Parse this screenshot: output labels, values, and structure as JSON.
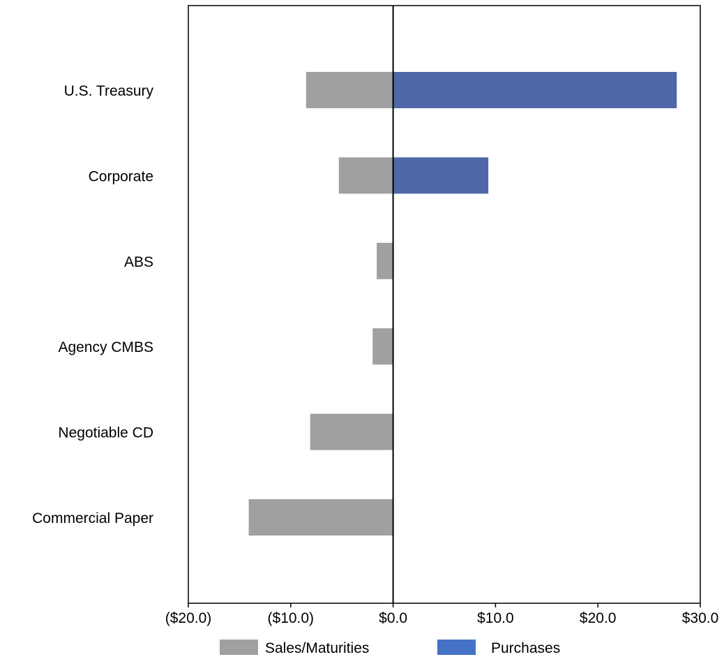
{
  "chart_data": {
    "type": "bar",
    "orientation": "horizontal",
    "stacked": "diverging",
    "categories": [
      "U.S. Treasury",
      "Corporate",
      "ABS",
      "Agency CMBS",
      "Negotiable CD",
      "Commercial Paper"
    ],
    "series": [
      {
        "name": "Sales/Maturities",
        "color": "#a0a0a0",
        "values": [
          -8.5,
          -5.3,
          -1.6,
          -2.0,
          -8.1,
          -14.1
        ]
      },
      {
        "name": "Purchases",
        "color": "#4f67a8",
        "values": [
          27.7,
          9.3,
          0,
          0,
          0,
          0
        ]
      }
    ],
    "xlim": [
      -20,
      30
    ],
    "xticks": [
      -20,
      -10,
      0,
      10,
      20,
      30
    ],
    "xtick_labels": [
      "($20.0)",
      "($10.0)",
      "$0.0",
      "$10.0",
      "$20.0",
      "$30.0"
    ],
    "title": "",
    "xlabel": "",
    "ylabel": "",
    "grid": false,
    "legend_position": "bottom",
    "legend_swatch_colors": [
      "#a0a0a0",
      "#4472c4"
    ]
  }
}
